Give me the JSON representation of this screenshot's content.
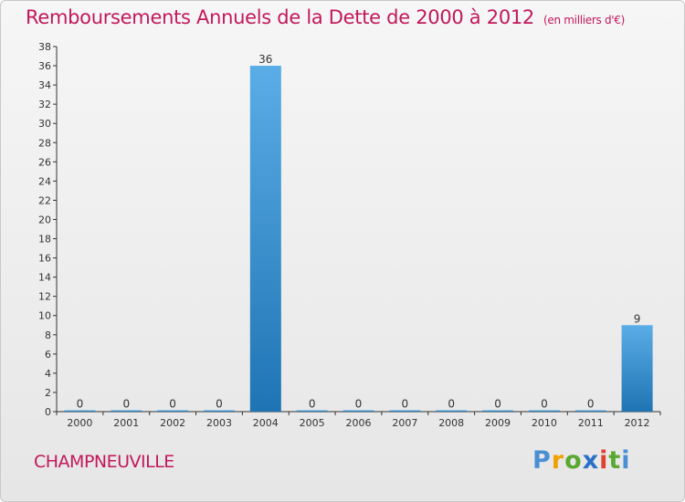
{
  "title": "Remboursements Annuels de la Dette de 2000 à 2012",
  "unit_note": "(en milliers d'€)",
  "commune": "CHAMPNEUVILLE",
  "logo": {
    "text": "Proxiti",
    "letters": [
      "P",
      "r",
      "o",
      "x",
      "i",
      "t",
      "i"
    ],
    "colors": [
      "#4a8fd4",
      "#f0a000",
      "#5aa832",
      "#2a70c8",
      "#e04030",
      "#5aa832",
      "#4a8fd4"
    ]
  },
  "colors": {
    "title": "#c2185b",
    "bar_light": "#5aade6",
    "bar_dark": "#1f74b3",
    "axis": "#333333"
  },
  "chart_data": {
    "type": "bar",
    "title": "Remboursements Annuels de la Dette de 2000 à 2012",
    "xlabel": "",
    "ylabel": "",
    "categories": [
      "2000",
      "2001",
      "2002",
      "2003",
      "2004",
      "2005",
      "2006",
      "2007",
      "2008",
      "2009",
      "2010",
      "2011",
      "2012"
    ],
    "values": [
      0,
      0,
      0,
      0,
      36,
      0,
      0,
      0,
      0,
      0,
      0,
      0,
      9
    ],
    "value_labels": [
      "0",
      "0",
      "0",
      "0",
      "36",
      "0",
      "0",
      "0",
      "0",
      "0",
      "0",
      "0",
      "9"
    ],
    "ylim": [
      0,
      38
    ],
    "yticks": [
      0,
      2,
      4,
      6,
      8,
      10,
      12,
      14,
      16,
      18,
      20,
      22,
      24,
      26,
      28,
      30,
      32,
      34,
      36,
      38
    ],
    "grid": false,
    "legend": "none"
  }
}
